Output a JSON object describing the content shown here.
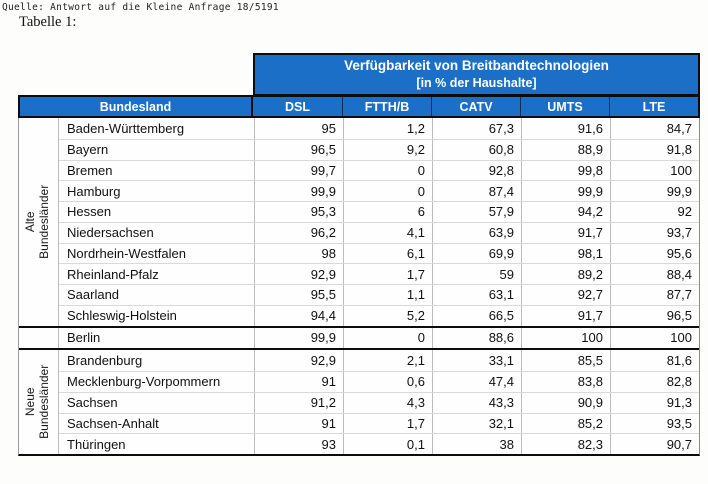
{
  "page": {
    "source_line": "Quelle: Antwort auf die Kleine Anfrage 18/5191",
    "caption": "Tabelle 1:"
  },
  "table": {
    "accent_color": "#1c6fc7",
    "banner_title": "Verfügbarkeit von Breitbandtechnologien",
    "banner_subtitle": "[in % der Haushalte]",
    "row_header": "Bundesland",
    "columns": [
      "DSL",
      "FTTH/B",
      "CATV",
      "UMTS",
      "LTE"
    ],
    "groups": [
      {
        "label_line1": "Alte",
        "label_line2": "Bundesländer",
        "rows": [
          {
            "name": "Baden-Württemberg",
            "values": [
              "95",
              "1,2",
              "67,3",
              "91,6",
              "84,7"
            ]
          },
          {
            "name": "Bayern",
            "values": [
              "96,5",
              "9,2",
              "60,8",
              "88,9",
              "91,8"
            ]
          },
          {
            "name": "Bremen",
            "values": [
              "99,7",
              "0",
              "92,8",
              "99,8",
              "100"
            ]
          },
          {
            "name": "Hamburg",
            "values": [
              "99,9",
              "0",
              "87,4",
              "99,9",
              "99,9"
            ]
          },
          {
            "name": "Hessen",
            "values": [
              "95,3",
              "6",
              "57,9",
              "94,2",
              "92"
            ]
          },
          {
            "name": "Niedersachsen",
            "values": [
              "96,2",
              "4,1",
              "63,9",
              "91,7",
              "93,7"
            ]
          },
          {
            "name": "Nordrhein-Westfalen",
            "values": [
              "98",
              "6,1",
              "69,9",
              "98,1",
              "95,6"
            ]
          },
          {
            "name": "Rheinland-Pfalz",
            "values": [
              "92,9",
              "1,7",
              "59",
              "89,2",
              "88,4"
            ]
          },
          {
            "name": "Saarland",
            "values": [
              "95,5",
              "1,1",
              "63,1",
              "92,7",
              "87,7"
            ]
          },
          {
            "name": "Schleswig-Holstein",
            "values": [
              "94,4",
              "5,2",
              "66,5",
              "91,7",
              "96,5"
            ]
          }
        ]
      },
      {
        "label_line1": "",
        "label_line2": "",
        "rows": [
          {
            "name": "Berlin",
            "values": [
              "99,9",
              "0",
              "88,6",
              "100",
              "100"
            ]
          }
        ]
      },
      {
        "label_line1": "Neue",
        "label_line2": "Bundesländer",
        "rows": [
          {
            "name": "Brandenburg",
            "values": [
              "92,9",
              "2,1",
              "33,1",
              "85,5",
              "81,6"
            ]
          },
          {
            "name": "Mecklenburg-Vorpommern",
            "values": [
              "91",
              "0,6",
              "47,4",
              "83,8",
              "82,8"
            ]
          },
          {
            "name": "Sachsen",
            "values": [
              "91,2",
              "4,3",
              "43,3",
              "90,9",
              "91,3"
            ]
          },
          {
            "name": "Sachsen-Anhalt",
            "values": [
              "91",
              "1,7",
              "32,1",
              "85,2",
              "93,5"
            ]
          },
          {
            "name": "Thüringen",
            "values": [
              "93",
              "0,1",
              "38",
              "82,3",
              "90,7"
            ]
          }
        ]
      }
    ]
  }
}
